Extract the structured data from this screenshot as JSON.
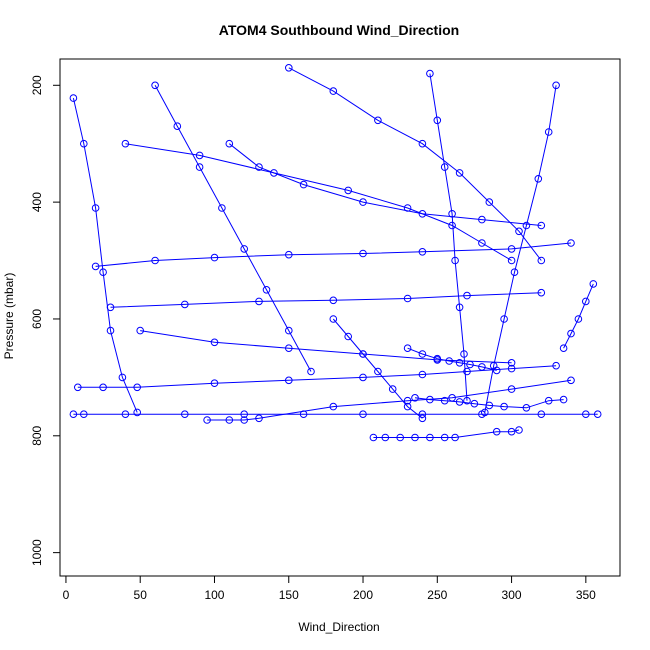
{
  "chart_data": {
    "type": "scatter",
    "title": "ATOM4 Southbound Wind_Direction",
    "xlabel": "Wind_Direction",
    "ylabel": "Pressure (mbar)",
    "xlim": [
      -4,
      373
    ],
    "ylim": [
      1040,
      155
    ],
    "y_reversed": true,
    "grid": false,
    "legend": "none",
    "x_ticks": [
      0,
      50,
      100,
      150,
      200,
      250,
      300,
      350
    ],
    "x_tick_labels": [
      "0",
      "50",
      "100",
      "150",
      "200",
      "250",
      "300",
      "350"
    ],
    "y_ticks": [
      200,
      400,
      600,
      800,
      1000
    ],
    "y_tick_labels": [
      "200",
      "400",
      "600",
      "800",
      "1000"
    ],
    "series": [
      {
        "color": "#0000ff",
        "marker": "open-circle",
        "points": [
          [
            5,
            763
          ],
          [
            12,
            763
          ],
          [
            40,
            763
          ],
          [
            80,
            763
          ],
          [
            120,
            763
          ],
          [
            160,
            763
          ],
          [
            200,
            763
          ],
          [
            240,
            763
          ],
          [
            280,
            763
          ],
          [
            320,
            763
          ],
          [
            350,
            763
          ],
          [
            358,
            763
          ]
        ]
      },
      {
        "color": "#0000ff",
        "marker": "open-circle",
        "points": [
          [
            8,
            717
          ],
          [
            25,
            717
          ],
          [
            48,
            717
          ],
          [
            100,
            710
          ],
          [
            150,
            705
          ],
          [
            200,
            700
          ],
          [
            240,
            695
          ],
          [
            270,
            690
          ],
          [
            300,
            685
          ],
          [
            330,
            680
          ]
        ]
      },
      {
        "color": "#0000ff",
        "marker": "open-circle",
        "points": [
          [
            207,
            803
          ],
          [
            215,
            803
          ],
          [
            225,
            803
          ],
          [
            235,
            803
          ],
          [
            245,
            803
          ],
          [
            255,
            803
          ],
          [
            262,
            803
          ],
          [
            290,
            793
          ],
          [
            300,
            793
          ],
          [
            305,
            790
          ]
        ]
      },
      {
        "color": "#0000ff",
        "marker": "open-circle",
        "points": [
          [
            95,
            773
          ],
          [
            110,
            773
          ],
          [
            120,
            773
          ],
          [
            130,
            770
          ],
          [
            180,
            750
          ],
          [
            230,
            740
          ],
          [
            260,
            735
          ],
          [
            300,
            720
          ],
          [
            340,
            705
          ]
        ]
      },
      {
        "color": "#0000ff",
        "marker": "open-circle",
        "points": [
          [
            5,
            222
          ],
          [
            12,
            300
          ],
          [
            20,
            410
          ],
          [
            25,
            520
          ],
          [
            30,
            620
          ],
          [
            38,
            700
          ],
          [
            48,
            760
          ]
        ]
      },
      {
        "color": "#0000ff",
        "marker": "open-circle",
        "points": [
          [
            20,
            510
          ],
          [
            60,
            500
          ],
          [
            100,
            495
          ],
          [
            150,
            490
          ],
          [
            200,
            488
          ],
          [
            240,
            485
          ],
          [
            300,
            480
          ],
          [
            340,
            470
          ]
        ]
      },
      {
        "color": "#0000ff",
        "marker": "open-circle",
        "points": [
          [
            30,
            580
          ],
          [
            80,
            575
          ],
          [
            130,
            570
          ],
          [
            180,
            568
          ],
          [
            230,
            565
          ],
          [
            270,
            560
          ],
          [
            320,
            555
          ]
        ]
      },
      {
        "color": "#0000ff",
        "marker": "open-circle",
        "points": [
          [
            40,
            300
          ],
          [
            90,
            320
          ],
          [
            140,
            350
          ],
          [
            190,
            380
          ],
          [
            230,
            410
          ],
          [
            260,
            440
          ],
          [
            280,
            470
          ],
          [
            300,
            500
          ]
        ]
      },
      {
        "color": "#0000ff",
        "marker": "open-circle",
        "points": [
          [
            60,
            200
          ],
          [
            75,
            270
          ],
          [
            90,
            340
          ],
          [
            105,
            410
          ],
          [
            120,
            480
          ],
          [
            135,
            550
          ],
          [
            150,
            620
          ],
          [
            165,
            690
          ]
        ]
      },
      {
        "color": "#0000ff",
        "marker": "open-circle",
        "points": [
          [
            150,
            170
          ],
          [
            180,
            210
          ],
          [
            210,
            260
          ],
          [
            240,
            300
          ],
          [
            265,
            350
          ],
          [
            285,
            400
          ],
          [
            305,
            450
          ],
          [
            320,
            500
          ]
        ]
      },
      {
        "color": "#0000ff",
        "marker": "open-circle",
        "points": [
          [
            245,
            180
          ],
          [
            250,
            260
          ],
          [
            255,
            340
          ],
          [
            260,
            420
          ],
          [
            262,
            500
          ],
          [
            265,
            580
          ],
          [
            268,
            660
          ],
          [
            270,
            740
          ]
        ]
      },
      {
        "color": "#0000ff",
        "marker": "open-circle",
        "points": [
          [
            330,
            200
          ],
          [
            325,
            280
          ],
          [
            318,
            360
          ],
          [
            310,
            440
          ],
          [
            302,
            520
          ],
          [
            295,
            600
          ],
          [
            288,
            680
          ],
          [
            282,
            760
          ]
        ]
      },
      {
        "color": "#0000ff",
        "marker": "open-circle",
        "points": [
          [
            230,
            650
          ],
          [
            240,
            660
          ],
          [
            250,
            668
          ],
          [
            258,
            672
          ],
          [
            265,
            675
          ],
          [
            272,
            678
          ],
          [
            280,
            682
          ],
          [
            290,
            688
          ]
        ]
      },
      {
        "color": "#0000ff",
        "marker": "open-circle",
        "points": [
          [
            235,
            735
          ],
          [
            245,
            738
          ],
          [
            255,
            740
          ],
          [
            265,
            742
          ],
          [
            275,
            745
          ],
          [
            285,
            748
          ],
          [
            295,
            750
          ],
          [
            310,
            752
          ],
          [
            325,
            740
          ],
          [
            335,
            738
          ]
        ]
      },
      {
        "color": "#0000ff",
        "marker": "open-circle",
        "points": [
          [
            110,
            300
          ],
          [
            130,
            340
          ],
          [
            160,
            370
          ],
          [
            200,
            400
          ],
          [
            240,
            420
          ],
          [
            280,
            430
          ],
          [
            320,
            440
          ]
        ]
      },
      {
        "color": "#0000ff",
        "marker": "open-circle",
        "points": [
          [
            50,
            620
          ],
          [
            100,
            640
          ],
          [
            150,
            650
          ],
          [
            200,
            660
          ],
          [
            250,
            670
          ],
          [
            300,
            675
          ]
        ]
      },
      {
        "color": "#0000ff",
        "marker": "open-circle",
        "points": [
          [
            355,
            540
          ],
          [
            350,
            570
          ],
          [
            345,
            600
          ],
          [
            340,
            625
          ],
          [
            335,
            650
          ]
        ]
      },
      {
        "color": "#0000ff",
        "marker": "open-circle",
        "points": [
          [
            180,
            600
          ],
          [
            190,
            630
          ],
          [
            200,
            660
          ],
          [
            210,
            690
          ],
          [
            220,
            720
          ],
          [
            230,
            750
          ],
          [
            240,
            770
          ]
        ]
      }
    ]
  }
}
